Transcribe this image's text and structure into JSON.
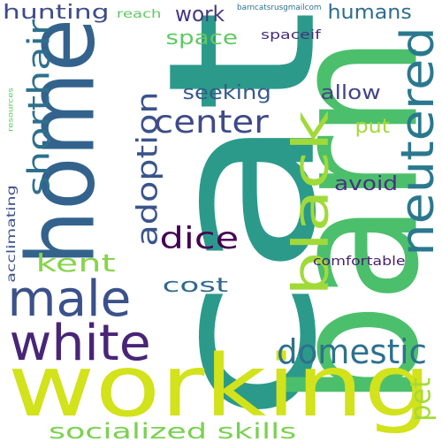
{
  "words": [
    {
      "text": "cat",
      "color": "#2b9a8a",
      "vertical": true
    },
    {
      "text": "barn",
      "color": "#4cbf6c",
      "vertical": true
    },
    {
      "text": "working",
      "color": "#d2e21b",
      "vertical": false
    },
    {
      "text": "home",
      "color": "#33638d",
      "vertical": true
    },
    {
      "text": "white",
      "color": "#482576",
      "vertical": false
    },
    {
      "text": "black",
      "color": "#a0da39",
      "vertical": true
    },
    {
      "text": "neutered",
      "color": "#2a788e",
      "vertical": true
    },
    {
      "text": "male",
      "color": "#3b518b",
      "vertical": false
    },
    {
      "text": "shorthair",
      "color": "#2d708e",
      "vertical": true
    },
    {
      "text": "domestic",
      "color": "#2d718e",
      "vertical": false
    },
    {
      "text": "adoption",
      "color": "#3a538b",
      "vertical": true
    },
    {
      "text": "center",
      "color": "#3e4a89",
      "vertical": false
    },
    {
      "text": "dice",
      "color": "#440154",
      "vertical": false
    },
    {
      "text": "socialized skills",
      "color": "#7ad151",
      "vertical": false
    },
    {
      "text": "kent",
      "color": "#86d549",
      "vertical": false
    },
    {
      "text": "pet",
      "color": "#a5db36",
      "vertical": true
    },
    {
      "text": "cost",
      "color": "#31688e",
      "vertical": false
    },
    {
      "text": "seeking",
      "color": "#375a8c",
      "vertical": false
    },
    {
      "text": "hunting",
      "color": "#3e4c8a",
      "vertical": false
    },
    {
      "text": "work",
      "color": "#453781",
      "vertical": false
    },
    {
      "text": "humans",
      "color": "#2e6d8e",
      "vertical": false
    },
    {
      "text": "space",
      "color": "#5ec962",
      "vertical": false
    },
    {
      "text": "allow",
      "color": "#414487",
      "vertical": false
    },
    {
      "text": "put",
      "color": "#a2da37",
      "vertical": false
    },
    {
      "text": "avoid",
      "color": "#46327e",
      "vertical": false
    },
    {
      "text": "spaceif",
      "color": "#472e7c",
      "vertical": false
    },
    {
      "text": "reach",
      "color": "#5ec962",
      "vertical": false
    },
    {
      "text": "comfortable",
      "color": "#481f70",
      "vertical": false
    },
    {
      "text": "acclimating",
      "color": "#3b528b",
      "vertical": true
    },
    {
      "text": "barncatsrusgmailcom",
      "color": "#2c718e",
      "vertical": false
    },
    {
      "text": "resources",
      "color": "#5ec962",
      "vertical": true
    }
  ]
}
